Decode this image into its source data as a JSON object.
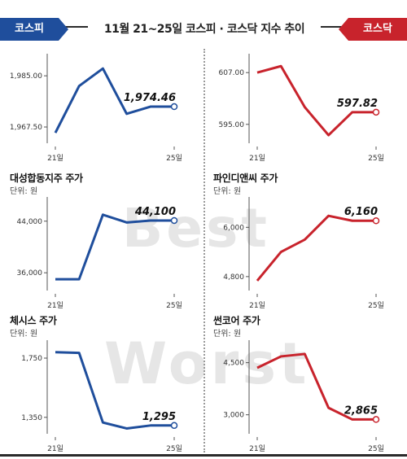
{
  "header": {
    "left_badge": "코스피",
    "right_badge": "코스닥",
    "title": "11월 21~25일  코스피 · 코스닥 지수 추이"
  },
  "colors": {
    "blue": "#1f4e9c",
    "red": "#c8232c",
    "watermark": "#e6e6e6"
  },
  "watermarks": {
    "best": "Best",
    "worst": "Worst"
  },
  "chart_data": [
    {
      "id": "kospi",
      "type": "line",
      "title": "",
      "unit": "",
      "color": "#1f4e9c",
      "x_ticks": [
        "21일",
        "25일"
      ],
      "y_ticks": [
        "1,985.00",
        "1,967.50"
      ],
      "y_tick_values": [
        1985.0,
        1967.5
      ],
      "ylim": [
        1962.5,
        1992.0
      ],
      "values": [
        1965.5,
        1981.5,
        1987.5,
        1972.0,
        1974.46,
        1974.46
      ],
      "last_label": "1,974.46"
    },
    {
      "id": "kosdaq",
      "type": "line",
      "title": "",
      "unit": "",
      "color": "#c8232c",
      "x_ticks": [
        "21일",
        "25일"
      ],
      "y_ticks": [
        "607.00",
        "595.00"
      ],
      "y_tick_values": [
        607.0,
        595.0
      ],
      "ylim": [
        591.0,
        611.0
      ],
      "values": [
        607.0,
        608.5,
        599.0,
        592.5,
        597.82,
        597.82
      ],
      "last_label": "597.82"
    },
    {
      "id": "daesung",
      "type": "line",
      "title": "대성합동지주 주가",
      "unit": "단위: 원",
      "color": "#1f4e9c",
      "x_ticks": [
        "21일",
        "25일"
      ],
      "y_ticks": [
        "44,000",
        "36,000"
      ],
      "y_tick_values": [
        44000,
        36000
      ],
      "ylim": [
        33500,
        47500
      ],
      "values": [
        35000,
        35000,
        45000,
        43800,
        44100,
        44100
      ],
      "last_label": "44,100"
    },
    {
      "id": "pinedigital",
      "type": "line",
      "title": "파인디앤씨 주가",
      "unit": "단위: 원",
      "color": "#c8232c",
      "x_ticks": [
        "21일",
        "25일"
      ],
      "y_ticks": [
        "6,000",
        "4,800"
      ],
      "y_tick_values": [
        6000,
        4800
      ],
      "ylim": [
        4500,
        6700
      ],
      "values": [
        4700,
        5400,
        5700,
        6280,
        6160,
        6160
      ],
      "last_label": "6,160"
    },
    {
      "id": "chesis",
      "type": "line",
      "title": "체시스 주가",
      "unit": "단위: 원",
      "color": "#1f4e9c",
      "x_ticks": [
        "21일",
        "25일"
      ],
      "y_ticks": [
        "1,750",
        "1,350"
      ],
      "y_tick_values": [
        1750,
        1350
      ],
      "ylim": [
        1250,
        1860
      ],
      "values": [
        1790,
        1785,
        1315,
        1275,
        1295,
        1295
      ],
      "last_label": "1,295"
    },
    {
      "id": "sunco",
      "type": "line",
      "title": "썬코어 주가",
      "unit": "단위: 원",
      "color": "#c8232c",
      "x_ticks": [
        "21일",
        "25일"
      ],
      "y_ticks": [
        "4,500",
        "3,000"
      ],
      "y_tick_values": [
        4500,
        3000
      ],
      "ylim": [
        2500,
        5100
      ],
      "values": [
        4350,
        4680,
        4750,
        3200,
        2865,
        2865
      ],
      "last_label": "2,865"
    }
  ]
}
